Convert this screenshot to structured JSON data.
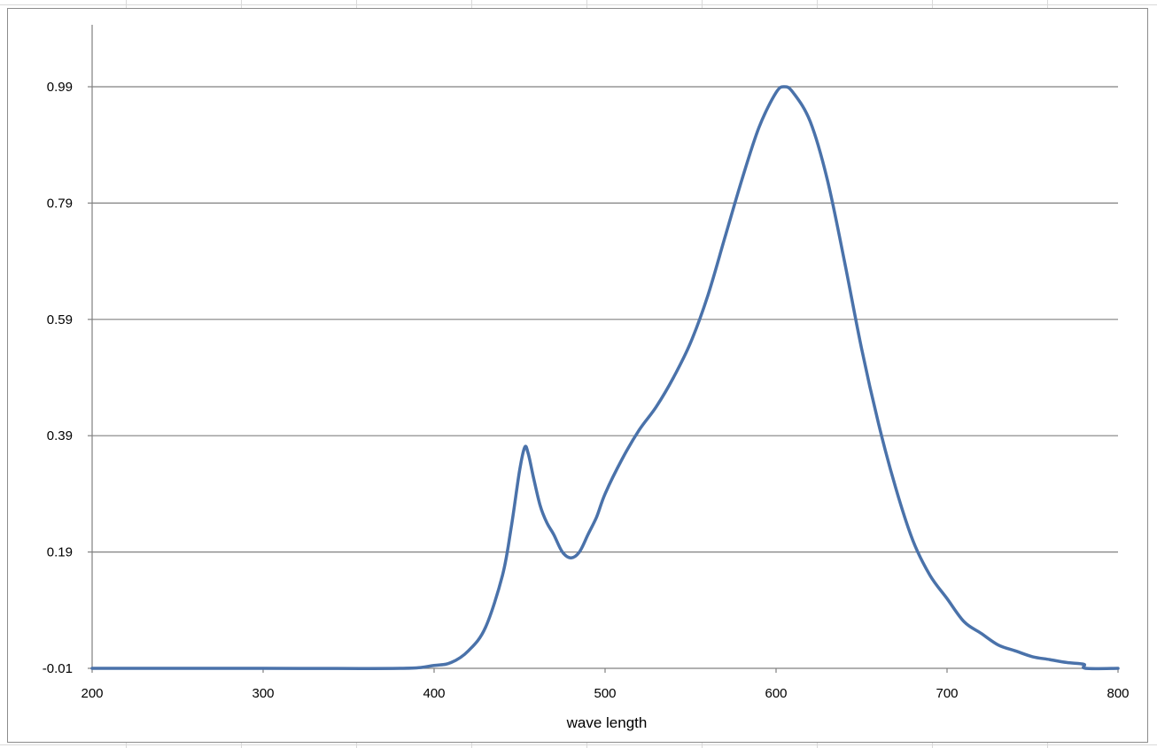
{
  "chart_data": {
    "type": "line",
    "title": "",
    "xlabel": "wave length",
    "ylabel": "",
    "xlim": [
      200,
      800
    ],
    "ylim": [
      -0.01,
      1.09
    ],
    "x_ticks": [
      200,
      300,
      400,
      500,
      600,
      700,
      800
    ],
    "y_ticks": [
      -0.01,
      0.19,
      0.39,
      0.59,
      0.79,
      0.99
    ],
    "x_tick_labels": [
      "200",
      "300",
      "400",
      "500",
      "600",
      "700",
      "800"
    ],
    "y_tick_labels": [
      "-0.01",
      "0.19",
      "0.39",
      "0.59",
      "0.79",
      "0.99"
    ],
    "grid": "horizontal",
    "legend": "none",
    "series": [
      {
        "color": "#4a72aa",
        "x": [
          200,
          300,
          380,
          400,
          410,
          420,
          430,
          440,
          445,
          450,
          453,
          455,
          458,
          462,
          466,
          470,
          475,
          480,
          485,
          490,
          495,
          500,
          510,
          520,
          530,
          540,
          550,
          560,
          570,
          580,
          590,
          600,
          605,
          610,
          620,
          630,
          640,
          650,
          660,
          670,
          680,
          690,
          700,
          710,
          720,
          730,
          740,
          750,
          760,
          770,
          780,
          781,
          800
        ],
        "y": [
          -0.01,
          -0.01,
          -0.01,
          -0.005,
          0.0,
          0.02,
          0.06,
          0.15,
          0.23,
          0.33,
          0.37,
          0.36,
          0.32,
          0.27,
          0.24,
          0.22,
          0.19,
          0.18,
          0.19,
          0.22,
          0.25,
          0.29,
          0.35,
          0.4,
          0.44,
          0.49,
          0.55,
          0.63,
          0.73,
          0.83,
          0.92,
          0.98,
          0.99,
          0.98,
          0.93,
          0.83,
          0.69,
          0.54,
          0.41,
          0.3,
          0.21,
          0.15,
          0.11,
          0.07,
          0.05,
          0.03,
          0.02,
          0.01,
          0.005,
          0.0,
          -0.003,
          -0.01,
          -0.01
        ]
      }
    ]
  },
  "colors": {
    "line": "#4a72aa",
    "gridline": "#808080",
    "axis": "#808080",
    "sheet_grid": "#d9d9d9"
  }
}
